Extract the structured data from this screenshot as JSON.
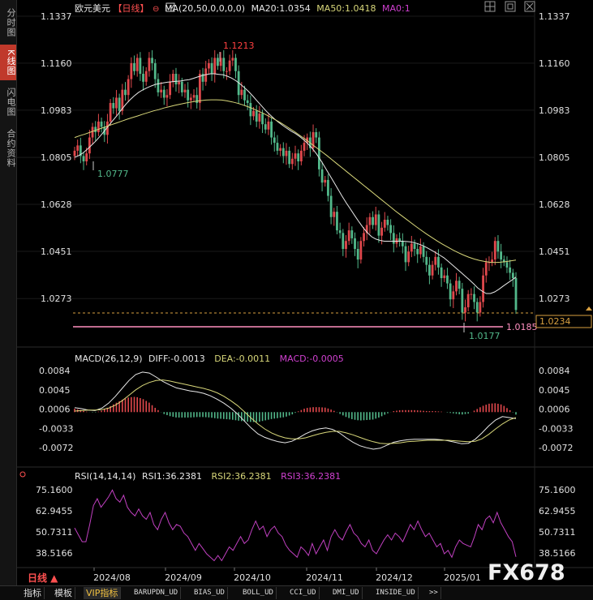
{
  "sidebar": {
    "tabs": [
      {
        "label": "分时图",
        "active": false
      },
      {
        "label": "K线图",
        "active": true
      },
      {
        "label": "闪电图",
        "active": false
      },
      {
        "label": "合约资料",
        "active": false
      }
    ]
  },
  "main_header": {
    "symbol": "欧元美元",
    "period": "【日线】",
    "ma_label": "MA(20,50,0,0,0,0)",
    "ma20": "MA20:1.0354",
    "ma50": "MA50:1.0418",
    "ma0": "MA0:1"
  },
  "macd_header": {
    "label": "MACD(26,12,9)",
    "diff": "DIFF:-0.0013",
    "dea": "DEA:-0.0011",
    "macd": "MACD:-0.0005"
  },
  "rsi_header": {
    "label": "RSI(14,14,14)",
    "rsi1": "RSI1:36.2381",
    "rsi2": "RSI2:36.2381",
    "rsi3": "RSI3:36.2381"
  },
  "annotations": {
    "high": "1.1213",
    "low_aug": "1.0777",
    "low_jan": "1.0177",
    "price_tag": "1.0185",
    "last_price": "1.0234"
  },
  "period_selector": "日线 ▲",
  "watermark": "FX678",
  "toolbar": [
    "指标",
    "模板",
    "VIP指标",
    "BARUPDN_UD",
    "BIAS_UD",
    "BOLL_UD",
    "CCI_UD",
    "DMI_UD",
    "INSIDE_UD",
    ">>"
  ],
  "colors": {
    "up": "#e0484c",
    "down": "#52b88a",
    "ma20": "#e8e8e8",
    "ma50": "#d8d77a",
    "diff": "#e8e8e8",
    "dea": "#d8d77a",
    "rsi": "#c040c0",
    "accent": "#ff4040"
  },
  "chart_data": [
    {
      "type": "candlestick",
      "title": "欧元美元 日线",
      "x_ticks": [
        "2024/08",
        "2024/09",
        "2024/10",
        "2024/11",
        "2024/12",
        "2025/01"
      ],
      "y_ticks": [
        1.1337,
        1.116,
        1.0983,
        1.0805,
        1.0628,
        1.0451,
        1.0273
      ],
      "ylim": [
        1.0185,
        1.1337
      ],
      "key_points": [
        {
          "date": "2024-08-01",
          "value": 1.0777,
          "label": "1.0777"
        },
        {
          "date": "2024-09-25",
          "value": 1.1213,
          "label": "1.1213"
        },
        {
          "date": "2025-01-13",
          "value": 1.0177,
          "label": "1.0177"
        }
      ],
      "close": [
        1.083,
        1.085,
        1.081,
        1.079,
        1.082,
        1.088,
        1.092,
        1.09,
        1.094,
        1.092,
        1.089,
        1.094,
        1.101,
        1.099,
        1.103,
        1.098,
        1.106,
        1.104,
        1.11,
        1.116,
        1.113,
        1.118,
        1.112,
        1.109,
        1.113,
        1.118,
        1.116,
        1.11,
        1.105,
        1.106,
        1.103,
        1.104,
        1.109,
        1.112,
        1.108,
        1.109,
        1.105,
        1.106,
        1.102,
        1.103,
        1.104,
        1.101,
        1.112,
        1.109,
        1.114,
        1.116,
        1.112,
        1.118,
        1.115,
        1.118,
        1.113,
        1.113,
        1.117,
        1.118,
        1.113,
        1.104,
        1.106,
        1.102,
        1.101,
        1.096,
        1.098,
        1.094,
        1.097,
        1.093,
        1.091,
        1.094,
        1.088,
        1.086,
        1.083,
        1.084,
        1.081,
        1.083,
        1.078,
        1.08,
        1.082,
        1.079,
        1.083,
        1.086,
        1.088,
        1.084,
        1.09,
        1.088,
        1.076,
        1.071,
        1.072,
        1.066,
        1.058,
        1.06,
        1.053,
        1.052,
        1.046,
        1.049,
        1.053,
        1.05,
        1.046,
        1.042,
        1.049,
        1.052,
        1.055,
        1.058,
        1.055,
        1.059,
        1.051,
        1.054,
        1.057,
        1.055,
        1.052,
        1.048,
        1.05,
        1.049,
        1.047,
        1.041,
        1.045,
        1.048,
        1.046,
        1.044,
        1.047,
        1.043,
        1.04,
        1.036,
        1.04,
        1.043,
        1.039,
        1.035,
        1.036,
        1.033,
        1.027,
        1.03,
        1.034,
        1.031,
        1.022,
        1.024,
        1.029,
        1.029,
        1.026,
        1.022,
        1.026,
        1.036,
        1.041,
        1.041,
        1.042,
        1.049,
        1.045,
        1.042,
        1.041,
        1.039,
        1.037,
        1.035,
        1.023
      ],
      "ma20": [
        1.0805,
        1.0812,
        1.0822,
        1.0836,
        1.0851,
        1.0867,
        1.0885,
        1.0904,
        1.0924,
        1.0944,
        1.0963,
        1.0984,
        1.1004,
        1.1021,
        1.1036,
        1.1049,
        1.1059,
        1.1067,
        1.1074,
        1.108,
        1.1083,
        1.1086,
        1.1089,
        1.109,
        1.1092,
        1.1093,
        1.1096,
        1.1098,
        1.1103,
        1.1108,
        1.1113,
        1.1117,
        1.112,
        1.112,
        1.1118,
        1.1116,
        1.1111,
        1.1104,
        1.1094,
        1.1082,
        1.1068,
        1.1053,
        1.1036,
        1.1018,
        1.1,
        1.0982,
        1.0966,
        1.0951,
        1.0938,
        1.0926,
        1.0915,
        1.0904,
        1.0895,
        1.0884,
        1.0871,
        1.0856,
        1.0839,
        1.0818,
        1.0794,
        1.0768,
        1.0741,
        1.0714,
        1.0687,
        1.066,
        1.0634,
        1.061,
        1.0586,
        1.0562,
        1.054,
        1.0521,
        1.0506,
        1.0497,
        1.0492,
        1.0489,
        1.0489,
        1.0489,
        1.0489,
        1.0489,
        1.0488,
        1.0487,
        1.0484,
        1.0479,
        1.0473,
        1.0465,
        1.0456,
        1.0447,
        1.0437,
        1.0427,
        1.0414,
        1.04,
        1.0386,
        1.0372,
        1.0358,
        1.0344,
        1.0329,
        1.0313,
        1.0301,
        1.0292,
        1.0292,
        1.0298,
        1.0308,
        1.032,
        1.0331,
        1.0342,
        1.0354
      ],
      "ma50": [
        1.088,
        1.0887,
        1.0893,
        1.09,
        1.0907,
        1.0914,
        1.0921,
        1.0928,
        1.0935,
        1.0942,
        1.0949,
        1.0955,
        1.0961,
        1.0968,
        1.0974,
        1.098,
        1.0985,
        1.0991,
        1.0996,
        1.1001,
        1.1005,
        1.1009,
        1.1013,
        1.1016,
        1.1019,
        1.1021,
        1.1022,
        1.1022,
        1.1021,
        1.1018,
        1.1014,
        1.1009,
        1.1003,
        1.0996,
        1.0988,
        1.0979,
        1.097,
        1.096,
        1.0949,
        1.0938,
        1.0926,
        1.0913,
        1.09,
        1.0886,
        1.0872,
        1.0857,
        1.0842,
        1.0827,
        1.0812,
        1.0796,
        1.078,
        1.0764,
        1.0748,
        1.0732,
        1.0716,
        1.07,
        1.0684,
        1.0668,
        1.0652,
        1.0636,
        1.062,
        1.0604,
        1.0589,
        1.0574,
        1.0559,
        1.0544,
        1.053,
        1.0516,
        1.0503,
        1.049,
        1.0478,
        1.0467,
        1.0456,
        1.0446,
        1.0437,
        1.0429,
        1.0422,
        1.0417,
        1.0413,
        1.041,
        1.0409,
        1.041,
        1.0412,
        1.0415,
        1.0418
      ]
    },
    {
      "type": "macd",
      "y_ticks": [
        0.0084,
        0.0045,
        0.0006,
        -0.0033,
        -0.0072
      ],
      "ylim": [
        -0.0098,
        0.0112
      ],
      "diff": [
        0.0009,
        0.0007,
        0.0004,
        0.0003,
        0.0008,
        0.0018,
        0.0032,
        0.0048,
        0.0064,
        0.0076,
        0.0081,
        0.0079,
        0.0071,
        0.0062,
        0.0055,
        0.0049,
        0.0046,
        0.0043,
        0.0041,
        0.0038,
        0.0033,
        0.0026,
        0.0018,
        0.0008,
        -0.0004,
        -0.0018,
        -0.0032,
        -0.0044,
        -0.0051,
        -0.0056,
        -0.006,
        -0.0062,
        -0.0059,
        -0.0052,
        -0.0044,
        -0.0038,
        -0.0034,
        -0.0032,
        -0.0035,
        -0.0042,
        -0.0052,
        -0.0061,
        -0.0068,
        -0.0072,
        -0.0075,
        -0.0073,
        -0.0067,
        -0.0061,
        -0.0058,
        -0.0056,
        -0.0055,
        -0.0055,
        -0.0055,
        -0.0055,
        -0.0056,
        -0.0058,
        -0.0061,
        -0.0064,
        -0.0063,
        -0.0055,
        -0.0042,
        -0.0028,
        -0.0016,
        -0.0009,
        -0.0011,
        -0.0013
      ],
      "dea": [
        0.0002,
        0.0003,
        0.0004,
        0.0004,
        0.0005,
        0.0008,
        0.0014,
        0.0023,
        0.0034,
        0.0045,
        0.0054,
        0.006,
        0.0064,
        0.0065,
        0.0063,
        0.006,
        0.0057,
        0.0054,
        0.0051,
        0.0048,
        0.0044,
        0.0039,
        0.0032,
        0.0023,
        0.0013,
        0.0001,
        -0.0012,
        -0.0024,
        -0.0034,
        -0.0042,
        -0.0048,
        -0.0052,
        -0.0054,
        -0.0054,
        -0.0052,
        -0.0048,
        -0.0044,
        -0.0041,
        -0.0039,
        -0.0039,
        -0.0042,
        -0.0046,
        -0.0051,
        -0.0056,
        -0.006,
        -0.0063,
        -0.0064,
        -0.0063,
        -0.0062,
        -0.006,
        -0.0059,
        -0.0058,
        -0.0057,
        -0.0057,
        -0.0057,
        -0.0057,
        -0.0058,
        -0.0059,
        -0.006,
        -0.0059,
        -0.0054,
        -0.0045,
        -0.0034,
        -0.0024,
        -0.0016,
        -0.0011
      ],
      "macd": [
        0.0007,
        0.0004,
        0.0,
        -0.0001,
        0.0003,
        0.001,
        0.0018,
        0.0025,
        0.003,
        0.0031,
        0.0027,
        0.0019,
        0.0007,
        -0.0003,
        -0.0008,
        -0.0011,
        -0.0011,
        -0.0011,
        -0.001,
        -0.001,
        -0.0011,
        -0.0013,
        -0.0014,
        -0.0015,
        -0.0017,
        -0.0019,
        -0.002,
        -0.002,
        -0.0017,
        -0.0014,
        -0.0012,
        -0.001,
        -0.0005,
        0.0002,
        0.0008,
        0.001,
        0.001,
        0.0009,
        0.0004,
        -0.0003,
        -0.001,
        -0.0015,
        -0.0017,
        -0.0016,
        -0.0015,
        -0.001,
        -0.0003,
        0.0002,
        0.0004,
        0.0004,
        0.0004,
        0.0003,
        0.0002,
        0.0002,
        0.0001,
        -0.0001,
        -0.0003,
        -0.0005,
        -0.0003,
        0.0004,
        0.0012,
        0.0017,
        0.0018,
        0.0015,
        0.0005,
        -0.0005
      ]
    },
    {
      "type": "line",
      "name": "RSI",
      "y_ticks": [
        75.16,
        62.9455,
        50.7311,
        38.5166
      ],
      "ylim": [
        30,
        78
      ],
      "values": [
        53,
        49,
        45,
        45,
        55,
        66,
        70,
        65,
        68,
        71,
        75,
        70,
        68,
        72,
        65,
        62,
        60,
        64,
        60,
        58,
        62,
        55,
        52,
        58,
        62,
        56,
        52,
        55,
        54,
        50,
        48,
        44,
        40,
        44,
        41,
        38,
        36,
        34,
        37,
        34,
        38,
        42,
        40,
        44,
        48,
        44,
        46,
        52,
        57,
        52,
        54,
        48,
        52,
        54,
        50,
        48,
        43,
        40,
        38,
        36,
        42,
        40,
        37,
        44,
        38,
        42,
        46,
        40,
        48,
        52,
        48,
        46,
        51,
        55,
        50,
        48,
        44,
        42,
        46,
        40,
        38,
        42,
        46,
        49,
        46,
        50,
        48,
        45,
        50,
        55,
        52,
        57,
        52,
        48,
        50,
        46,
        42,
        44,
        38,
        40,
        36,
        42,
        46,
        44,
        43,
        42,
        48,
        55,
        52,
        58,
        60,
        56,
        62,
        56,
        52,
        48,
        45,
        36.24
      ]
    }
  ]
}
